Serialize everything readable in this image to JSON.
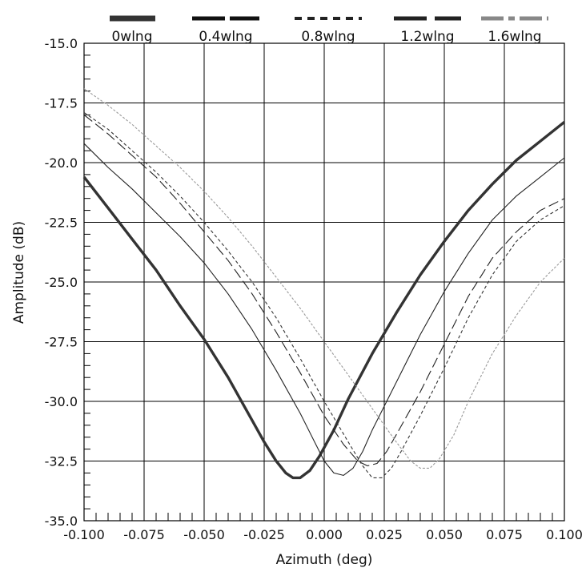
{
  "chart_data": {
    "type": "line",
    "title": "",
    "xlabel": "Azimuth (deg)",
    "ylabel": "Amplitude (dB)",
    "xlim": [
      -0.1,
      0.1
    ],
    "ylim": [
      -35.0,
      -15.0
    ],
    "x_ticks": [
      "-0.100",
      "-0.075",
      "-0.050",
      "-0.025",
      "0.000",
      "0.025",
      "0.050",
      "0.075",
      "0.100"
    ],
    "y_ticks": [
      "-15.0",
      "-17.5",
      "-20.0",
      "-22.5",
      "-25.0",
      "-27.5",
      "-30.0",
      "-32.5",
      "-35.0"
    ],
    "grid": true,
    "legend_position": "top",
    "series": [
      {
        "name": "0wlng",
        "color": "#333333",
        "style": "thick-solid",
        "points": [
          [
            -0.1,
            -20.6
          ],
          [
            -0.09,
            -21.9
          ],
          [
            -0.08,
            -23.2
          ],
          [
            -0.07,
            -24.5
          ],
          [
            -0.06,
            -26.0
          ],
          [
            -0.05,
            -27.4
          ],
          [
            -0.04,
            -29.0
          ],
          [
            -0.03,
            -30.8
          ],
          [
            -0.025,
            -31.7
          ],
          [
            -0.02,
            -32.5
          ],
          [
            -0.016,
            -33.0
          ],
          [
            -0.013,
            -33.2
          ],
          [
            -0.01,
            -33.2
          ],
          [
            -0.006,
            -32.9
          ],
          [
            -0.002,
            -32.3
          ],
          [
            0.004,
            -31.2
          ],
          [
            0.01,
            -29.9
          ],
          [
            0.02,
            -28.0
          ],
          [
            0.03,
            -26.3
          ],
          [
            0.04,
            -24.7
          ],
          [
            0.05,
            -23.3
          ],
          [
            0.06,
            -22.0
          ],
          [
            0.07,
            -20.9
          ],
          [
            0.08,
            -19.9
          ],
          [
            0.09,
            -19.1
          ],
          [
            0.1,
            -18.3
          ]
        ]
      },
      {
        "name": "0.4wlng",
        "color": "#222222",
        "style": "thin-solid",
        "points": [
          [
            -0.1,
            -19.2
          ],
          [
            -0.09,
            -20.2
          ],
          [
            -0.08,
            -21.1
          ],
          [
            -0.07,
            -22.1
          ],
          [
            -0.06,
            -23.1
          ],
          [
            -0.05,
            -24.2
          ],
          [
            -0.04,
            -25.5
          ],
          [
            -0.03,
            -27.0
          ],
          [
            -0.02,
            -28.7
          ],
          [
            -0.01,
            -30.5
          ],
          [
            -0.004,
            -31.7
          ],
          [
            0.0,
            -32.5
          ],
          [
            0.004,
            -33.0
          ],
          [
            0.008,
            -33.1
          ],
          [
            0.012,
            -32.8
          ],
          [
            0.016,
            -32.1
          ],
          [
            0.02,
            -31.2
          ],
          [
            0.03,
            -29.2
          ],
          [
            0.04,
            -27.2
          ],
          [
            0.05,
            -25.4
          ],
          [
            0.06,
            -23.8
          ],
          [
            0.07,
            -22.4
          ],
          [
            0.08,
            -21.4
          ],
          [
            0.09,
            -20.6
          ],
          [
            0.1,
            -19.8
          ]
        ]
      },
      {
        "name": "0.8wlng",
        "color": "#222222",
        "style": "long-dash",
        "points": [
          [
            -0.1,
            -18.0
          ],
          [
            -0.09,
            -18.8
          ],
          [
            -0.08,
            -19.7
          ],
          [
            -0.07,
            -20.6
          ],
          [
            -0.06,
            -21.7
          ],
          [
            -0.05,
            -22.9
          ],
          [
            -0.04,
            -24.1
          ],
          [
            -0.03,
            -25.5
          ],
          [
            -0.02,
            -27.1
          ],
          [
            -0.01,
            -28.8
          ],
          [
            0.0,
            -30.6
          ],
          [
            0.008,
            -31.8
          ],
          [
            0.014,
            -32.5
          ],
          [
            0.018,
            -32.7
          ],
          [
            0.022,
            -32.6
          ],
          [
            0.026,
            -32.1
          ],
          [
            0.03,
            -31.4
          ],
          [
            0.04,
            -29.6
          ],
          [
            0.05,
            -27.6
          ],
          [
            0.06,
            -25.6
          ],
          [
            0.07,
            -24.0
          ],
          [
            0.08,
            -22.9
          ],
          [
            0.09,
            -22.0
          ],
          [
            0.1,
            -21.5
          ]
        ]
      },
      {
        "name": "1.2wlng",
        "color": "#333333",
        "style": "short-dash",
        "points": [
          [
            -0.1,
            -17.9
          ],
          [
            -0.09,
            -18.6
          ],
          [
            -0.08,
            -19.5
          ],
          [
            -0.07,
            -20.4
          ],
          [
            -0.06,
            -21.4
          ],
          [
            -0.05,
            -22.5
          ],
          [
            -0.04,
            -23.7
          ],
          [
            -0.03,
            -25.0
          ],
          [
            -0.02,
            -26.5
          ],
          [
            -0.01,
            -28.2
          ],
          [
            0.0,
            -30.0
          ],
          [
            0.01,
            -31.7
          ],
          [
            0.016,
            -32.7
          ],
          [
            0.02,
            -33.2
          ],
          [
            0.024,
            -33.2
          ],
          [
            0.028,
            -32.8
          ],
          [
            0.032,
            -32.1
          ],
          [
            0.04,
            -30.6
          ],
          [
            0.05,
            -28.6
          ],
          [
            0.06,
            -26.5
          ],
          [
            0.07,
            -24.7
          ],
          [
            0.08,
            -23.3
          ],
          [
            0.09,
            -22.4
          ],
          [
            0.1,
            -21.8
          ]
        ]
      },
      {
        "name": "1.6wlng",
        "color": "#999999",
        "style": "gray-dash",
        "points": [
          [
            -0.1,
            -16.9
          ],
          [
            -0.09,
            -17.6
          ],
          [
            -0.08,
            -18.4
          ],
          [
            -0.07,
            -19.3
          ],
          [
            -0.06,
            -20.2
          ],
          [
            -0.05,
            -21.2
          ],
          [
            -0.04,
            -22.3
          ],
          [
            -0.03,
            -23.5
          ],
          [
            -0.02,
            -24.8
          ],
          [
            -0.01,
            -26.1
          ],
          [
            0.0,
            -27.5
          ],
          [
            0.01,
            -28.9
          ],
          [
            0.02,
            -30.3
          ],
          [
            0.03,
            -31.7
          ],
          [
            0.036,
            -32.5
          ],
          [
            0.04,
            -32.8
          ],
          [
            0.044,
            -32.8
          ],
          [
            0.048,
            -32.4
          ],
          [
            0.054,
            -31.4
          ],
          [
            0.06,
            -30.0
          ],
          [
            0.07,
            -28.0
          ],
          [
            0.08,
            -26.4
          ],
          [
            0.09,
            -25.0
          ],
          [
            0.1,
            -24.0
          ]
        ]
      }
    ]
  }
}
